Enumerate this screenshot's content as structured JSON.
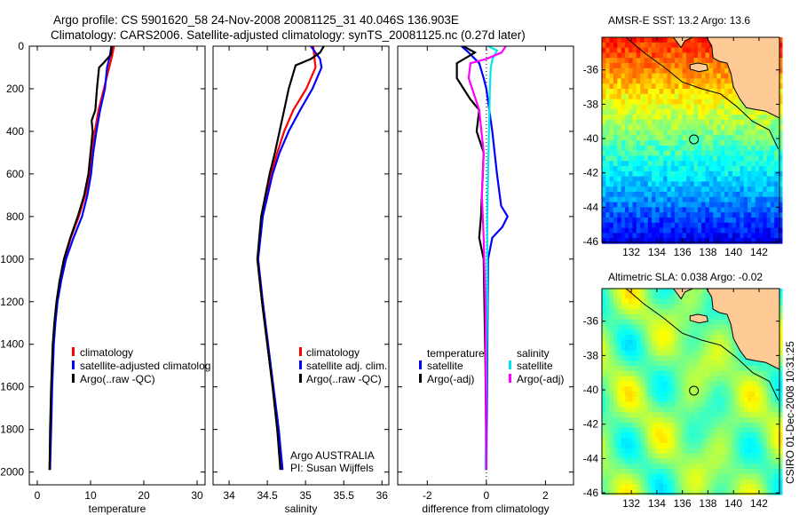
{
  "title": {
    "line1": "Argo profile: CS 5901620_58 24-Nov-2008 20081125_31 40.046S 136.903E",
    "line2": "Climatology: CARS2006. Satellite-adjusted climatology: synTS_20081125.nc (0.27d later)"
  },
  "colors": {
    "climatology": "#ff0000",
    "satellite": "#0000ff",
    "argo": "#000000",
    "sal_satellite": "#00e5ee",
    "sal_argo": "#ff00ff"
  },
  "chart_data": [
    {
      "type": "line",
      "xlabel": "temperature",
      "ylabel": "",
      "xlim": [
        -1.5,
        31.5
      ],
      "ylim": [
        2060,
        0
      ],
      "xticks": [
        "0",
        "10",
        "20",
        "30"
      ],
      "xtick_values": [
        0,
        10,
        20,
        30
      ],
      "yticks": [
        "0",
        "200",
        "400",
        "600",
        "800",
        "1000",
        "1200",
        "1400",
        "1600",
        "1800",
        "2000"
      ],
      "ytick_values": [
        0,
        200,
        400,
        600,
        800,
        1000,
        1200,
        1400,
        1600,
        1800,
        2000
      ],
      "legend": [
        "climatology",
        "satellite-adjusted climatolog",
        "Argo(..raw -QC)"
      ],
      "legend_placement": "center-right",
      "series": [
        {
          "name": "climatology",
          "color": "#ff0000",
          "depth": [
            0,
            50,
            100,
            200,
            300,
            400,
            500,
            600,
            700,
            800,
            900,
            1000,
            1100,
            1200,
            1300,
            1400,
            1600,
            1800,
            1990
          ],
          "values": [
            14.4,
            14.0,
            13.5,
            12.5,
            11.5,
            10.8,
            10.2,
            9.8,
            9.0,
            7.8,
            6.3,
            5.1,
            4.3,
            3.7,
            3.3,
            3.0,
            2.7,
            2.5,
            2.3
          ]
        },
        {
          "name": "satellite-adjusted climatology",
          "color": "#0000ff",
          "depth": [
            0,
            50,
            100,
            200,
            300,
            400,
            500,
            600,
            700,
            800,
            900,
            1000,
            1100,
            1200,
            1300,
            1400,
            1600,
            1800,
            1990
          ],
          "values": [
            13.9,
            13.6,
            13.1,
            12.7,
            11.8,
            11.1,
            10.5,
            10.1,
            9.4,
            8.4,
            6.8,
            5.4,
            4.5,
            3.8,
            3.4,
            3.1,
            2.8,
            2.6,
            2.4
          ]
        },
        {
          "name": "Argo(..raw -QC)",
          "color": "#000000",
          "depth": [
            0,
            40,
            80,
            100,
            200,
            300,
            350,
            400,
            500,
            600,
            700,
            800,
            900,
            1000,
            1100,
            1200,
            1300,
            1400,
            1600,
            1800,
            1990
          ],
          "values": [
            14.0,
            13.8,
            12.4,
            11.6,
            11.2,
            10.9,
            10.2,
            10.4,
            10.0,
            9.6,
            8.8,
            7.6,
            6.2,
            5.0,
            4.2,
            3.6,
            3.2,
            2.9,
            2.6,
            2.4,
            2.3
          ]
        }
      ]
    },
    {
      "type": "line",
      "xlabel": "salinity",
      "xlim": [
        33.79,
        36.09
      ],
      "ylim": [
        2060,
        0
      ],
      "xticks": [
        "34",
        "34.5",
        "35",
        "35.5",
        "36"
      ],
      "xtick_values": [
        34,
        34.5,
        35,
        35.5,
        36
      ],
      "legend": [
        "climatology",
        "satellite adj. clim.",
        "Argo(..raw -QC)"
      ],
      "legend_placement": "center-right",
      "annotations": [
        "Argo AUSTRALIA",
        "PI: Susan Wijffels"
      ],
      "series": [
        {
          "name": "climatology",
          "color": "#ff0000",
          "depth": [
            0,
            100,
            200,
            300,
            400,
            500,
            600,
            800,
            1000,
            1200,
            1400,
            1600,
            1800,
            1990
          ],
          "values": [
            35.1,
            35.13,
            35.01,
            34.84,
            34.72,
            34.63,
            34.55,
            34.44,
            34.37,
            34.43,
            34.5,
            34.57,
            34.63,
            34.69
          ]
        },
        {
          "name": "satellite adj. clim.",
          "color": "#0000ff",
          "depth": [
            0,
            60,
            100,
            200,
            300,
            400,
            500,
            600,
            800,
            1000,
            1200,
            1400,
            1600,
            1800,
            1990
          ],
          "values": [
            35.07,
            35.19,
            35.21,
            35.09,
            34.93,
            34.78,
            34.66,
            34.57,
            34.44,
            34.38,
            34.44,
            34.51,
            34.58,
            34.65,
            34.7
          ]
        },
        {
          "name": "Argo(..raw -QC)",
          "color": "#000000",
          "depth": [
            0,
            30,
            60,
            90,
            200,
            300,
            400,
            500,
            600,
            800,
            1000,
            1200,
            1400,
            1600,
            1800,
            1990
          ],
          "values": [
            35.24,
            35.19,
            35.07,
            34.87,
            34.78,
            34.72,
            34.66,
            34.6,
            34.53,
            34.42,
            34.37,
            34.43,
            34.5,
            34.57,
            34.63,
            34.67
          ]
        }
      ]
    },
    {
      "type": "line",
      "xlabel": "difference from climatology",
      "xlim": [
        -3,
        2.95
      ],
      "ylim": [
        2060,
        0
      ],
      "xticks": [
        "-2",
        "0",
        "2"
      ],
      "xtick_values": [
        -2,
        0,
        2
      ],
      "legend_headers": [
        "temperature",
        "salinity"
      ],
      "legend": [
        "satellite",
        "Argo(-adj)",
        "satellite",
        "Argo(-adj)"
      ],
      "legend_placement": "center",
      "series": [
        {
          "name": "temperature satellite",
          "color": "#0000ff",
          "depth": [
            0,
            30,
            80,
            150,
            200,
            400,
            600,
            750,
            800,
            850,
            900,
            1000,
            1500,
            1990
          ],
          "values": [
            -0.84,
            -0.6,
            -0.24,
            -0.09,
            0,
            0.2,
            0.36,
            0.5,
            0.72,
            0.54,
            0.2,
            0.06,
            0.03,
            0.0
          ]
        },
        {
          "name": "temperature Argo(-adj)",
          "color": "#000000",
          "depth": [
            0,
            30,
            80,
            150,
            250,
            300,
            400,
            500,
            600,
            800,
            900,
            1000,
            1500,
            1990
          ],
          "values": [
            -0.78,
            -0.39,
            -1.0,
            -1.0,
            -0.54,
            -0.24,
            -0.33,
            -0.09,
            -0.12,
            -0.18,
            -0.24,
            -0.09,
            -0.03,
            0.0
          ]
        },
        {
          "name": "salinity satellite",
          "color": "#00e5ee",
          "depth": [
            0,
            20,
            60,
            100,
            200,
            400,
            800,
            1200,
            1990
          ],
          "values": [
            0.06,
            0.36,
            0.21,
            0.15,
            0.12,
            0.09,
            0.03,
            0.03,
            -0.03
          ]
        },
        {
          "name": "salinity Argo(-adj)",
          "color": "#ff00ff",
          "depth": [
            0,
            30,
            60,
            80,
            150,
            300,
            500,
            700,
            900,
            1200,
            1990
          ],
          "values": [
            0.66,
            0.51,
            0.0,
            -0.54,
            -0.6,
            -0.24,
            -0.09,
            -0.15,
            -0.09,
            -0.03,
            0.0
          ]
        }
      ]
    }
  ],
  "maps": [
    {
      "title": "AMSR-E SST: 13.2 Argo: 13.6",
      "kind": "sst",
      "float_lat": -40.046,
      "float_lon": 136.903
    },
    {
      "title": "Altimetric SLA: 0.038 Argo: -0.02",
      "kind": "sla",
      "float_lat": -40.046,
      "float_lon": 136.903
    }
  ],
  "map_axes": {
    "lon_ticks": [
      "132",
      "134",
      "136",
      "138",
      "140",
      "142"
    ],
    "lon_values": [
      132,
      134,
      136,
      138,
      140,
      142
    ],
    "lat_ticks": [
      "-36",
      "-38",
      "-40",
      "-42",
      "-44",
      "-46"
    ],
    "lat_values": [
      -36,
      -38,
      -40,
      -42,
      -44,
      -46
    ],
    "lon_range": [
      129.7,
      143.6
    ],
    "lat_range": [
      -46.05,
      -34.1
    ]
  },
  "footer": {
    "stamp": "CSIRO 01-Dec-2008 10:31:25"
  }
}
